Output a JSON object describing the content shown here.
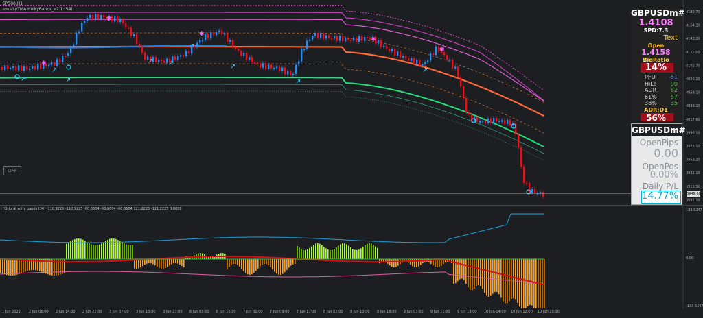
{
  "chart": {
    "symbol_label": "SP500,H1",
    "indicator_label": "sm.asyTMA HeikyBands_v2.1 (54)",
    "off_button": "OFF",
    "current_price": "3949.00",
    "price_axis": [
      "4185.70",
      "4164.30",
      "4143.20",
      "4122.00",
      "4101.70",
      "4080.10",
      "4059.10",
      "4039.10",
      "4017.60",
      "3996.10",
      "3975.10",
      "3953.20",
      "3932.10",
      "3911.50",
      "3891.10"
    ],
    "sub_label": "H1 Jurik volty bands (34) -110.9225 -110.9225 -60.8604 -60.8604 -60.8604 121.2225 -121.2225 0.0000",
    "sub_axis": [
      "133.5247",
      "0.00",
      "-133.5247"
    ],
    "time_labels": [
      "1 Jun 2022",
      "2 Jun 06:00",
      "2 Jun 14:00",
      "2 Jun 22:00",
      "3 Jun 07:00",
      "3 Jun 15:00",
      "3 Jun 23:00",
      "6 Jun 08:00",
      "6 Jun 16:00",
      "7 Jun 01:00",
      "7 Jun 09:00",
      "7 Jun 17:00",
      "8 Jun 02:00",
      "8 Jun 10:00",
      "8 Jun 18:00",
      "9 Jun 03:00",
      "9 Jun 11:00",
      "9 Jun 19:00",
      "10 Jun 04:00",
      "10 Jun 12:00",
      "10 Jun 20:00"
    ]
  },
  "panel1": {
    "symbol": "GBPUSDm#",
    "price": "1.4108",
    "spd": "SPD:7.3",
    "text_label": "Text",
    "open_label": "Open",
    "open_value": "1.4158",
    "bidratio_label": "BidRatio",
    "bidratio_value": "14%",
    "rows": [
      {
        "k": "PFO",
        "v": "-51"
      },
      {
        "k": "HiLo",
        "v": "90"
      },
      {
        "k": "ADR",
        "v": "82"
      },
      {
        "k": "61%",
        "v": "57"
      },
      {
        "k": "38%",
        "v": "35"
      }
    ],
    "adr_label": "ADR:D1",
    "adr_value": "56%"
  },
  "panel2": {
    "symbol": "GBPUSDm#",
    "open_pips_label": "OpenPips",
    "open_pips_value": "0.00",
    "open_pos_label": "OpenPos",
    "open_pos_value": "0.00%",
    "daily_pl_label": "Daily P/L",
    "daily_pl_value": "14.77%"
  },
  "colors": {
    "bull": "#2a8cf0",
    "bear": "#e8101a",
    "bg": "#1c1e22",
    "magenta": "#e040c8",
    "orange": "#ff6a3a",
    "green": "#22e07a",
    "hist_up": "#a6ff2a",
    "hist_down": "#ffa020",
    "pl_value": "#00b0d0"
  }
}
